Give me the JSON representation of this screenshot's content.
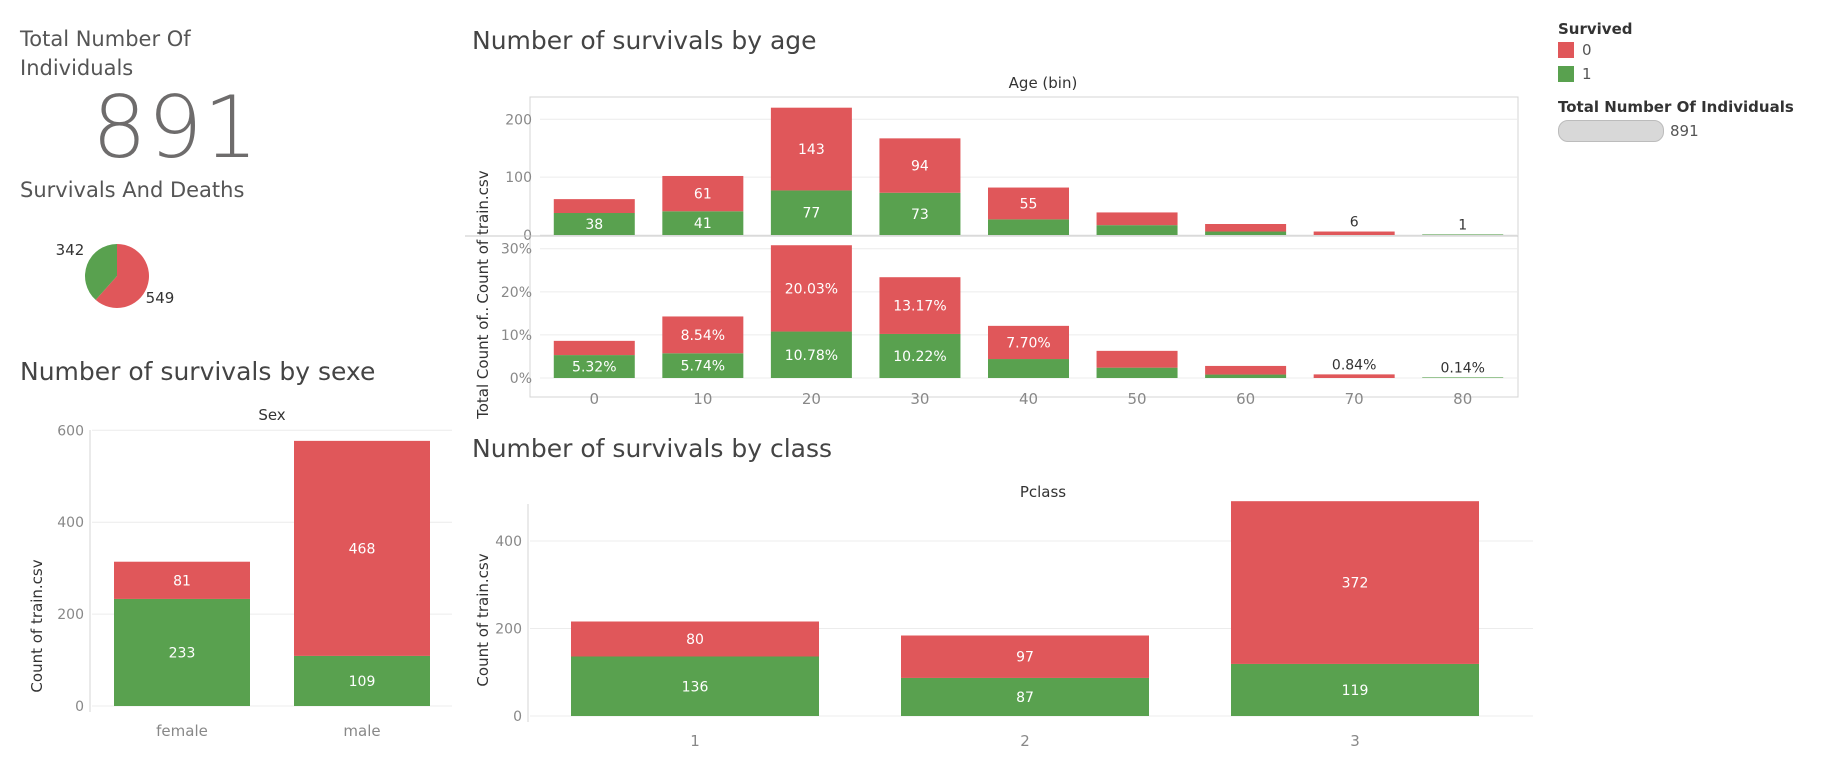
{
  "colors": {
    "died": "#e0575a",
    "survived": "#59a14f",
    "axis": "#888888",
    "grid": "#ececec",
    "text_light": "#ffffff",
    "text_dark": "#333333"
  },
  "kpi": {
    "label": "Total Number Of Individuals",
    "value": "891"
  },
  "pie": {
    "label": "Survivals And Deaths",
    "survived_label": "342",
    "died_label": "549"
  },
  "legend": {
    "title": "Survived",
    "items": [
      "0",
      "1"
    ],
    "size_title": "Total Number Of Individuals",
    "size_value": "891"
  },
  "chart_data": [
    {
      "type": "pie",
      "title": "Survivals And Deaths",
      "categories": [
        "1",
        "0"
      ],
      "values": [
        342,
        549
      ]
    },
    {
      "type": "bar",
      "stacked": true,
      "title": "Number of survivals by age",
      "xlabel": "Age (bin)",
      "ylabel": "Count of train.csv",
      "categories": [
        "0",
        "10",
        "20",
        "30",
        "40",
        "50",
        "60",
        "70",
        "80"
      ],
      "series": [
        {
          "name": "1",
          "values": [
            38,
            41,
            77,
            73,
            27,
            17,
            6,
            0,
            1
          ]
        },
        {
          "name": "0",
          "values": [
            24,
            61,
            143,
            94,
            55,
            22,
            13,
            6,
            0
          ]
        }
      ],
      "labels_0": [
        "",
        "61",
        "143",
        "94",
        "55",
        "",
        "",
        "6",
        ""
      ],
      "labels_1": [
        "38",
        "41",
        "77",
        "73",
        "",
        "",
        "",
        "",
        "1"
      ],
      "yticks": [
        0,
        100,
        200
      ],
      "ylim": [
        0,
        230
      ]
    },
    {
      "type": "bar",
      "stacked": true,
      "title": "Number of survivals by age",
      "xlabel": "Age (bin)",
      "ylabel": "% of Total Count of..",
      "categories": [
        "0",
        "10",
        "20",
        "30",
        "40",
        "50",
        "60",
        "70",
        "80"
      ],
      "series": [
        {
          "name": "1",
          "values": [
            5.32,
            5.74,
            10.78,
            10.22,
            4.4,
            2.4,
            0.8,
            0,
            0.14
          ]
        },
        {
          "name": "0",
          "values": [
            3.3,
            8.54,
            20.03,
            13.17,
            7.7,
            3.9,
            2.0,
            0.84,
            0
          ]
        }
      ],
      "labels_0": [
        "",
        "8.54%",
        "20.03%",
        "13.17%",
        "7.70%",
        "",
        "",
        "0.84%",
        ""
      ],
      "labels_1": [
        "5.32%",
        "5.74%",
        "10.78%",
        "10.22%",
        "",
        "",
        "",
        "",
        "0.14%"
      ],
      "yticks": [
        "0%",
        "10%",
        "20%",
        "30%"
      ],
      "ylim": [
        0,
        32
      ]
    },
    {
      "type": "bar",
      "stacked": true,
      "title": "Number of survivals by sexe",
      "xlabel": "Sex",
      "ylabel": "Count of train.csv",
      "categories": [
        "female",
        "male"
      ],
      "series": [
        {
          "name": "1",
          "values": [
            233,
            109
          ]
        },
        {
          "name": "0",
          "values": [
            81,
            468
          ]
        }
      ],
      "yticks": [
        0,
        200,
        400,
        600
      ],
      "ylim": [
        0,
        630
      ]
    },
    {
      "type": "bar",
      "stacked": true,
      "title": "Number of survivals by class",
      "xlabel": "Pclass",
      "ylabel": "Count of train.csv",
      "categories": [
        "1",
        "2",
        "3"
      ],
      "series": [
        {
          "name": "1",
          "values": [
            136,
            87,
            119
          ]
        },
        {
          "name": "0",
          "values": [
            80,
            97,
            372
          ]
        }
      ],
      "yticks": [
        0,
        200,
        400
      ],
      "ylim": [
        0,
        520
      ]
    }
  ]
}
